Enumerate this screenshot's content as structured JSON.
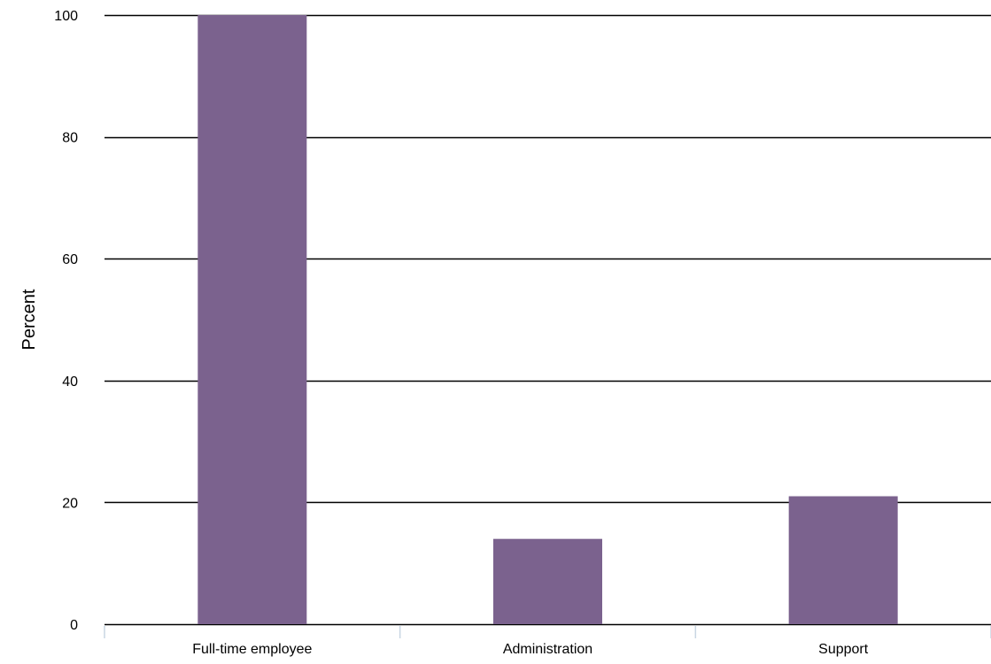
{
  "chart_data": {
    "type": "bar",
    "title": "",
    "xlabel": "",
    "ylabel": "Percent",
    "categories": [
      "Full-time employee",
      "Administration",
      "Support"
    ],
    "values": [
      100,
      14,
      21
    ],
    "ylim": [
      0,
      100
    ],
    "yticks": [
      0,
      20,
      40,
      60,
      80,
      100
    ],
    "ytick_labels": [
      "0",
      "20",
      "40",
      "60",
      "80",
      "100"
    ],
    "grid": true,
    "legend": "none",
    "bar_color": "#7b628e",
    "gridline_color": "#000000",
    "category_divider_color": "#c9d6e3"
  }
}
